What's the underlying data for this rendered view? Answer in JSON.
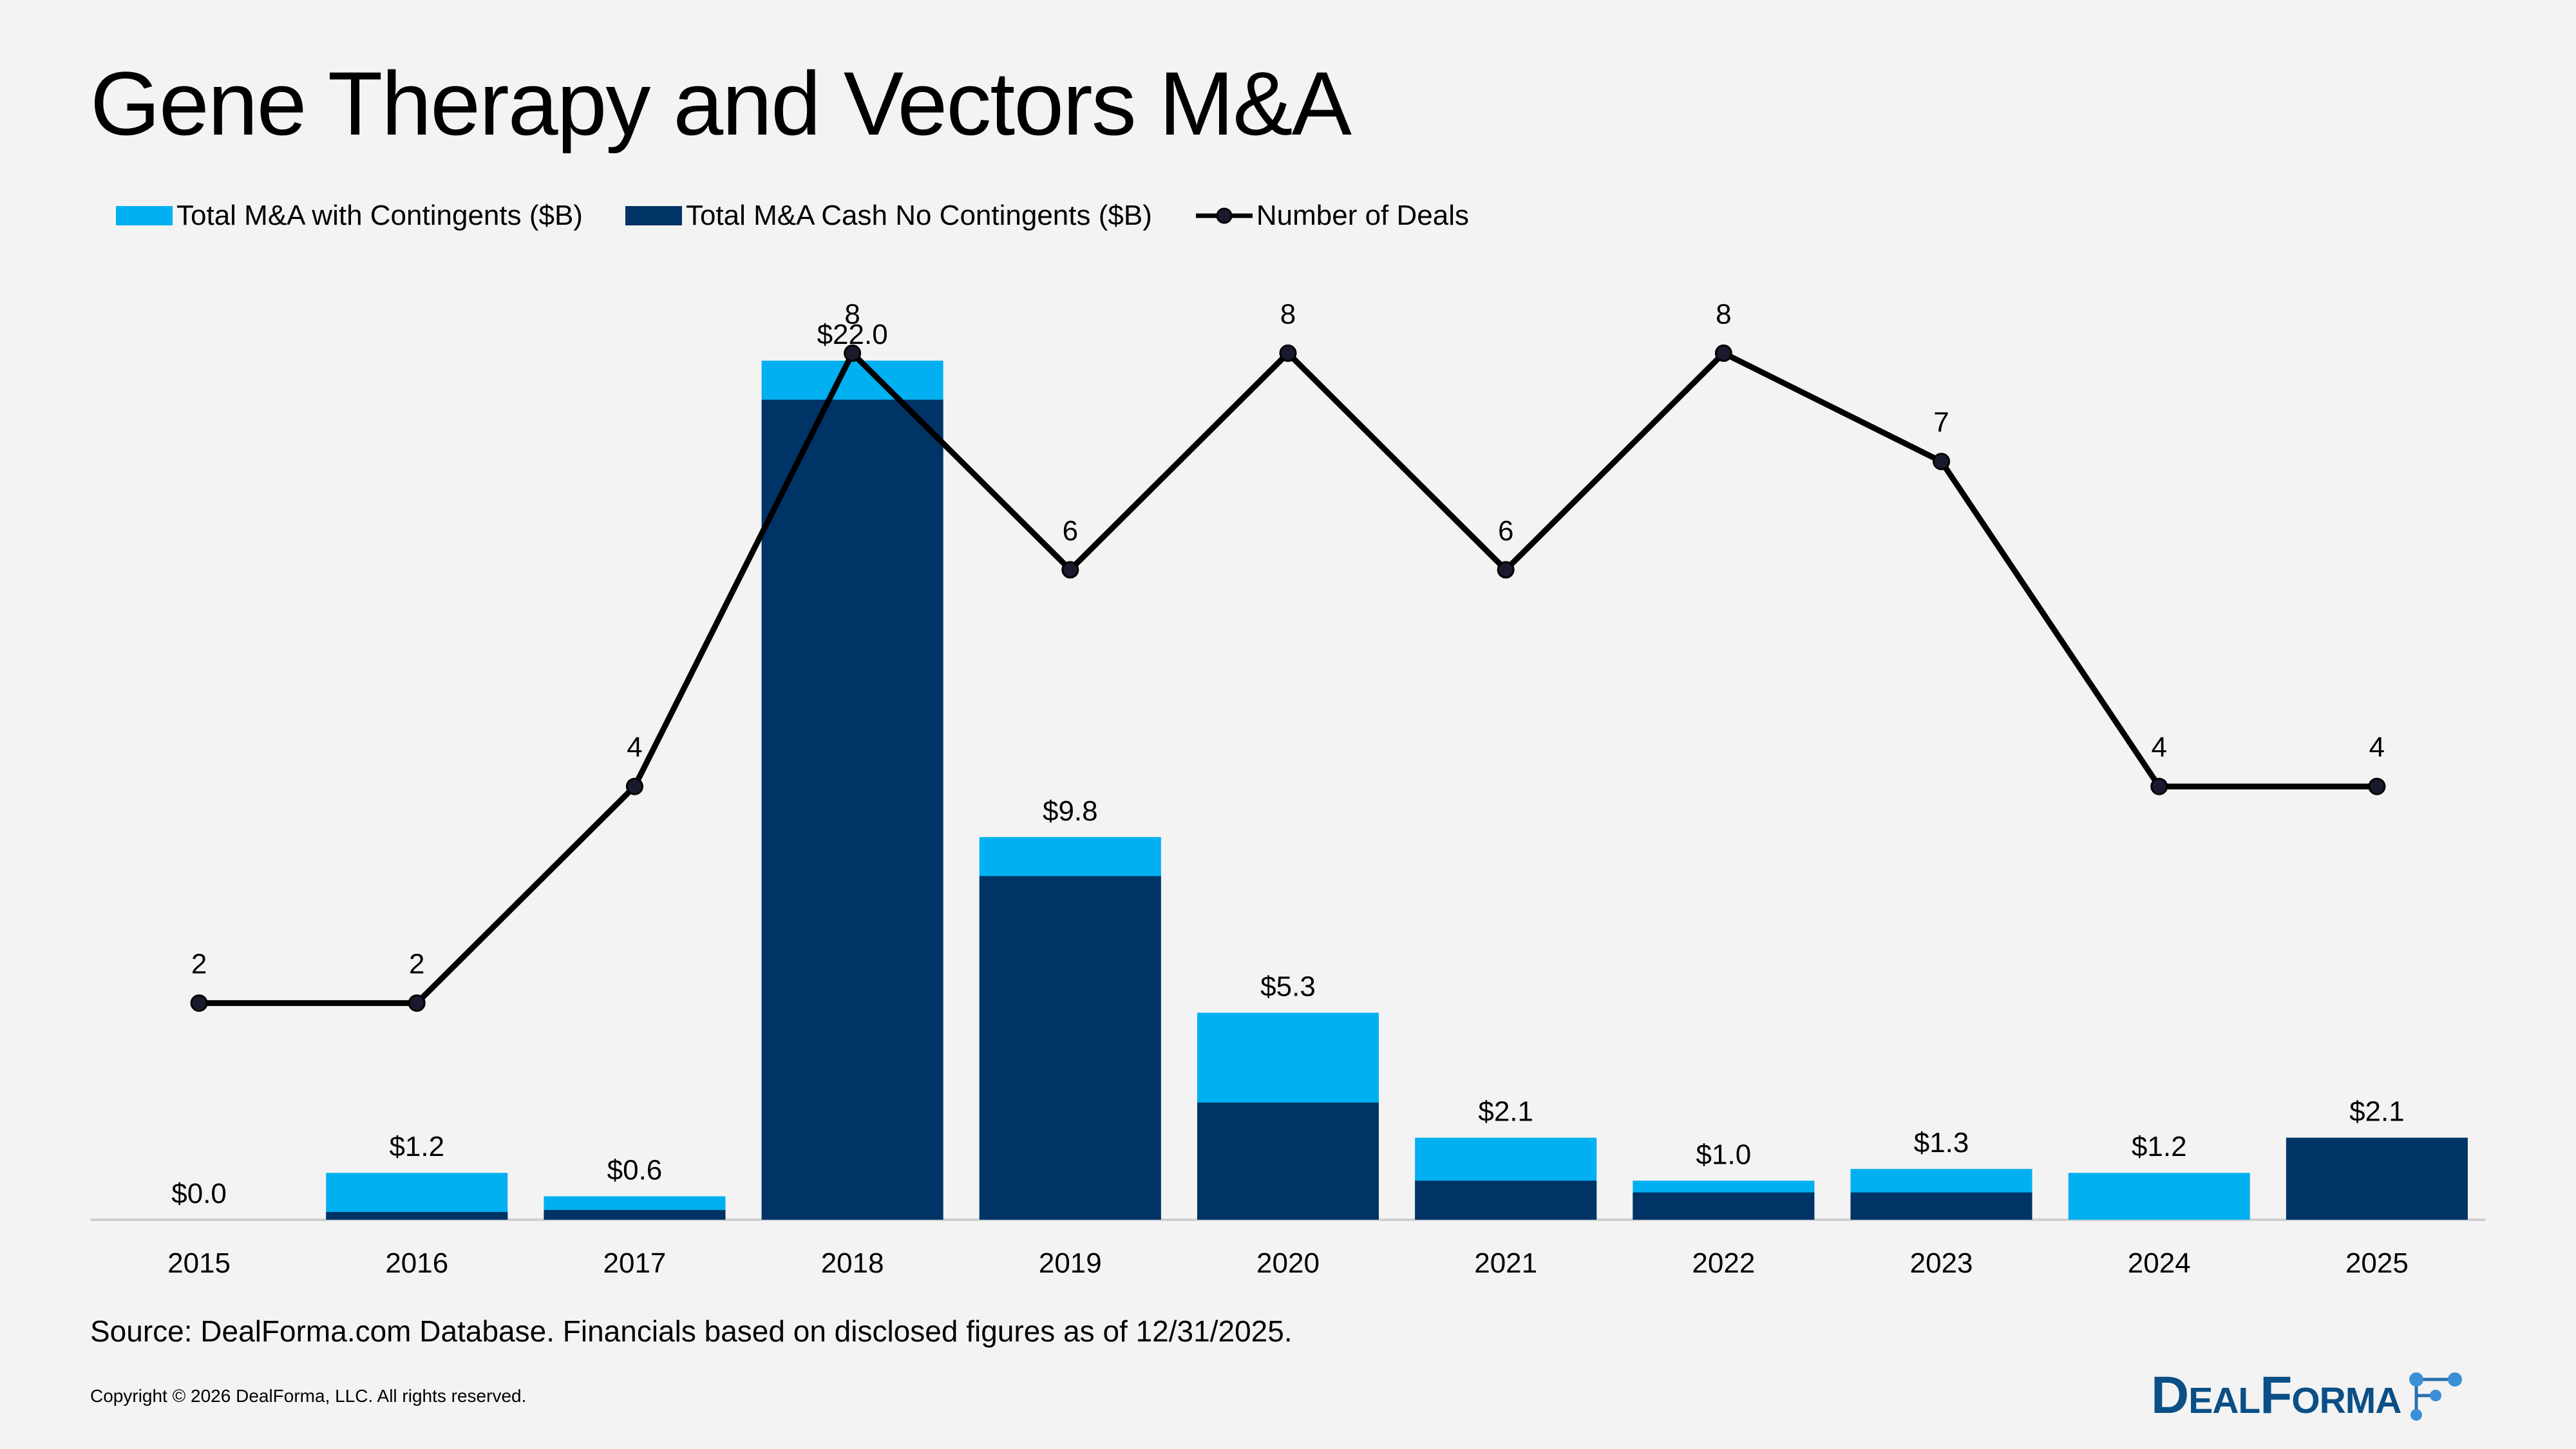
{
  "title": "Gene Therapy and Vectors M&A",
  "legend": {
    "with_contingents": "Total M&A with Contingents ($B)",
    "cash_no_contingents": "Total M&A Cash No Contingents ($B)",
    "number_of_deals": "Number of Deals"
  },
  "colors": {
    "with_contingents": "#00b0f0",
    "cash_no_contingents": "#003366",
    "number_of_deals": "#000000"
  },
  "chart_data": {
    "type": "bar",
    "stacked": true,
    "categories": [
      "2015",
      "2016",
      "2017",
      "2018",
      "2019",
      "2020",
      "2021",
      "2022",
      "2023",
      "2024",
      "2025"
    ],
    "series": [
      {
        "name": "Total M&A with Contingents ($B)",
        "values": [
          0.0,
          1.2,
          0.6,
          22.0,
          9.8,
          5.3,
          2.1,
          1.0,
          1.3,
          1.2,
          2.1
        ],
        "labels": [
          "$0.0",
          "$1.2",
          "$0.6",
          "$22.0",
          "$9.8",
          "$5.3",
          "$2.1",
          "$1.0",
          "$1.3",
          "$1.2",
          "$2.1"
        ]
      },
      {
        "name": "Total M&A Cash No Contingents ($B)",
        "values": [
          0.0,
          0.2,
          0.25,
          21.0,
          8.8,
          3.0,
          1.0,
          0.7,
          0.7,
          0.0,
          2.1
        ]
      },
      {
        "name": "Number of Deals",
        "type": "line",
        "values": [
          2,
          2,
          4,
          8,
          6,
          8,
          6,
          8,
          7,
          4,
          4
        ],
        "labels": [
          "2",
          "2",
          "4",
          "8",
          "6",
          "8",
          "6",
          "8",
          "7",
          "4",
          "4"
        ]
      }
    ],
    "value_axis_range": [
      0,
      22
    ],
    "deals_axis_range": [
      0,
      10
    ],
    "grid": false,
    "legend_position": "top-left"
  },
  "source": "Source: DealForma.com Database. Financials based on disclosed figures as of 12/31/2025.",
  "copyright": "Copyright © 2026 DealForma, LLC. All rights reserved.",
  "logo": {
    "text": "DealForma"
  }
}
